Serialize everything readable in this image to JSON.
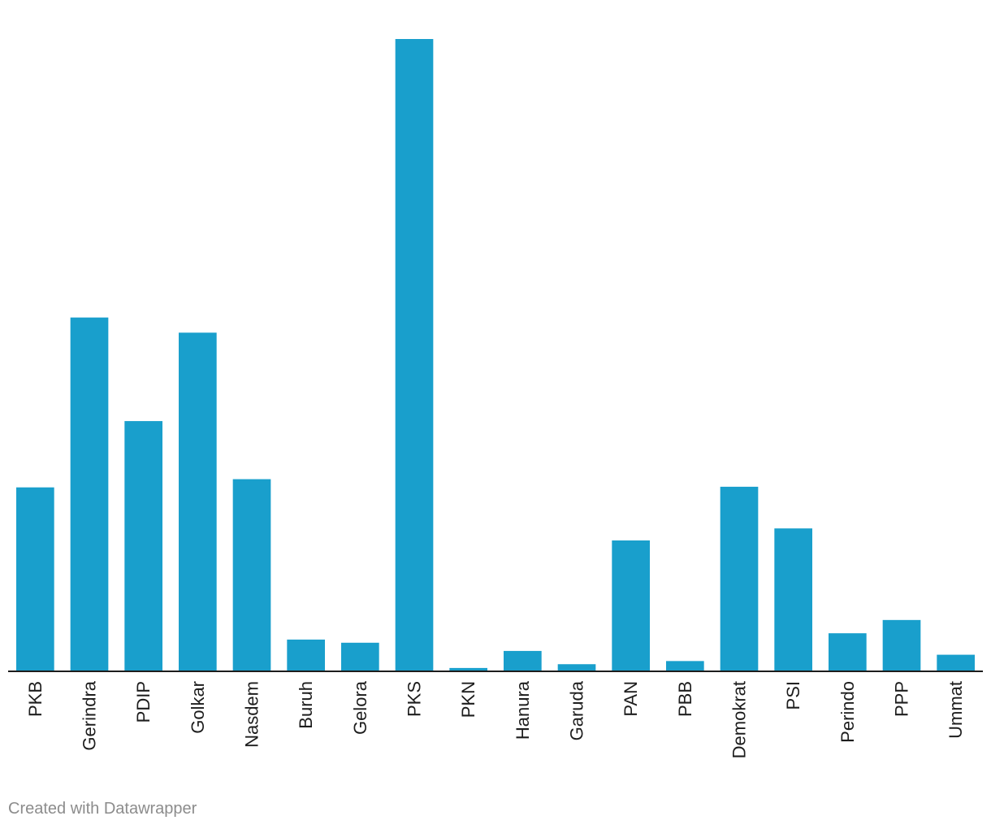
{
  "chart_data": {
    "type": "bar",
    "categories": [
      "PKB",
      "Gerindra",
      "PDIP",
      "Golkar",
      "Nasdem",
      "Buruh",
      "Gelora",
      "PKS",
      "PKN",
      "Hanura",
      "Garuda",
      "PAN",
      "PBB",
      "Demokrat",
      "PSI",
      "Perindo",
      "PPP",
      "Ummat"
    ],
    "values": [
      29.0,
      55.9,
      39.5,
      53.5,
      30.3,
      4.9,
      4.4,
      100.0,
      0.4,
      3.1,
      1.0,
      20.6,
      1.5,
      29.1,
      22.5,
      5.9,
      8.0,
      2.5
    ],
    "ylim": [
      0,
      100
    ],
    "grid": false,
    "bar_color": "#199fcc",
    "title": "",
    "xlabel": "",
    "ylabel": ""
  },
  "footer": {
    "credit": "Created with Datawrapper"
  }
}
